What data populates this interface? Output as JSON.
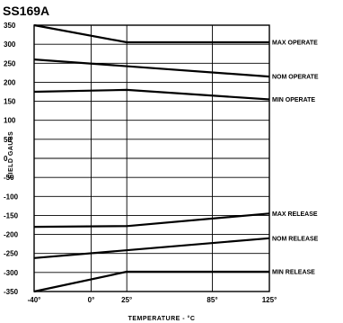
{
  "chart_data": {
    "type": "line",
    "title": "SS169A",
    "xlabel": "TEMPERATURE - °C",
    "ylabel": "FIELD GAUSS",
    "x_ticks": [
      "-40°",
      "0°",
      "25°",
      "85°",
      "125°"
    ],
    "x_tick_values": [
      -40,
      0,
      25,
      85,
      125
    ],
    "xlim": [
      -40,
      125
    ],
    "y_ticks": [
      "350",
      "300",
      "250",
      "200",
      "150",
      "100",
      "50",
      "0",
      "-50",
      "-100",
      "-150",
      "-200",
      "-250",
      "-300",
      "-350"
    ],
    "y_tick_values": [
      350,
      300,
      250,
      200,
      150,
      100,
      50,
      0,
      -50,
      -100,
      -150,
      -200,
      -250,
      -300,
      -350
    ],
    "ylim": [
      -350,
      350
    ],
    "grid": true,
    "series": [
      {
        "name": "MAX OPERATE",
        "x": [
          -40,
          25,
          125
        ],
        "y": [
          350,
          305,
          305
        ]
      },
      {
        "name": "NOM OPERATE",
        "x": [
          -40,
          125
        ],
        "y": [
          260,
          215
        ]
      },
      {
        "name": "MIN OPERATE",
        "x": [
          -40,
          25,
          125
        ],
        "y": [
          175,
          180,
          155
        ]
      },
      {
        "name": "MAX RELEASE",
        "x": [
          -40,
          25,
          125
        ],
        "y": [
          -180,
          -178,
          -145
        ]
      },
      {
        "name": "NOM RELEASE",
        "x": [
          -40,
          125
        ],
        "y": [
          -262,
          -210
        ]
      },
      {
        "name": "MIN RELEASE",
        "x": [
          -40,
          25,
          125
        ],
        "y": [
          -350,
          -298,
          -298
        ]
      }
    ]
  }
}
